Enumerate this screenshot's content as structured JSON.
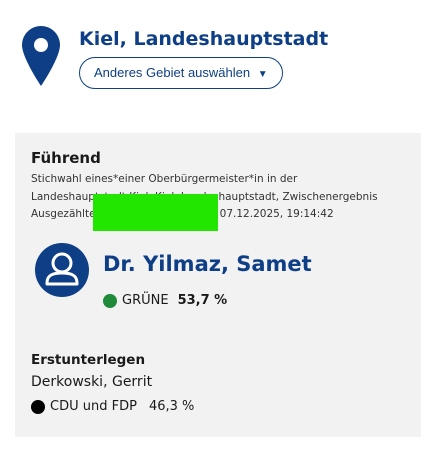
{
  "header": {
    "region_title": "Kiel, Landeshauptstadt",
    "select_button_label": "Anderes Gebiet auswählen",
    "select_button_caret": "▼"
  },
  "result": {
    "leading_heading": "Führend",
    "description_lines": [
      "Stichwahl eines*einer Oberbürgermeister*in in der",
      "Landeshauptstadt Kiel, Kiel, Landeshauptstadt, Zwischenergebnis",
      "Ausgezählte Gebiete: 128 von 137, 07.12.2025, 19:14:42"
    ],
    "winner": {
      "name": "Dr. Yilmaz, Samet",
      "party": "GRÜNE",
      "percent": "53,7 %",
      "party_color": "#1e8a3a"
    },
    "runner_up": {
      "heading": "Erstunterlegen",
      "name": "Derkowski, Gerrit",
      "party": "CDU und FDP",
      "percent": "46,3 %",
      "party_color": "#000000"
    }
  },
  "colors": {
    "accent": "#0e3f86",
    "card_background": "#f2f2f2",
    "highlight": "#22e600"
  },
  "icons": {
    "location": "map-pin-icon",
    "candidate": "user-avatar-icon"
  }
}
